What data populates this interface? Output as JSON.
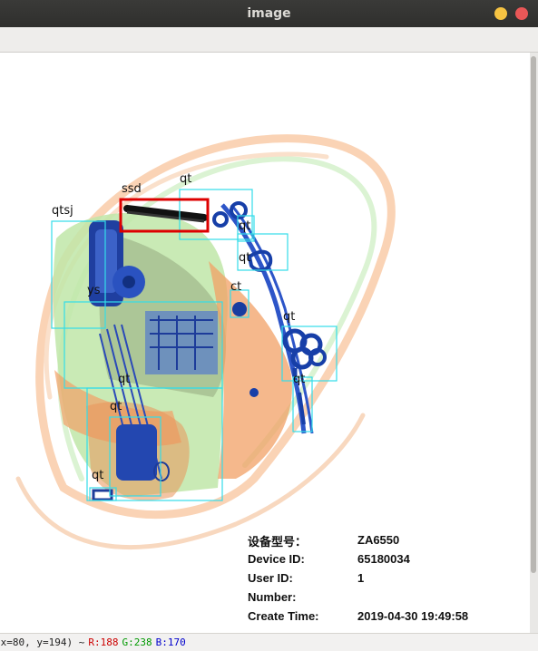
{
  "window": {
    "title": "image",
    "controls": [
      "minimize-icon",
      "close-icon"
    ]
  },
  "detections": [
    {
      "label": "ssd",
      "color": "#dd0000"
    },
    {
      "label": "qt",
      "color": "#33dde8"
    },
    {
      "label": "qtsj",
      "color": "#33dde8"
    },
    {
      "label": "qt",
      "color": "#33dde8"
    },
    {
      "label": "qt",
      "color": "#33dde8"
    },
    {
      "label": "ct",
      "color": "#33dde8"
    },
    {
      "label": "ys",
      "color": "#33dde8"
    },
    {
      "label": "qt",
      "color": "#33dde8"
    },
    {
      "label": "qt",
      "color": "#33dde8"
    },
    {
      "label": "qt",
      "color": "#33dde8"
    },
    {
      "label": "qt",
      "color": "#33dde8"
    },
    {
      "label": "qt",
      "color": "#33dde8"
    }
  ],
  "device_info": {
    "model_label": "设备型号：",
    "model_value": "ZA6550",
    "device_id_label": "Device ID:",
    "device_id_value": "65180034",
    "user_id_label": "User ID:",
    "user_id_value": "1",
    "number_label": "Number:",
    "number_value": "",
    "create_time_label": "Create Time:",
    "create_time_value": "2019-04-30 19:49:58"
  },
  "status": {
    "coords": "(x=80, y=194) ~",
    "r": "R:188",
    "g": "G:238",
    "b": "B:170"
  }
}
